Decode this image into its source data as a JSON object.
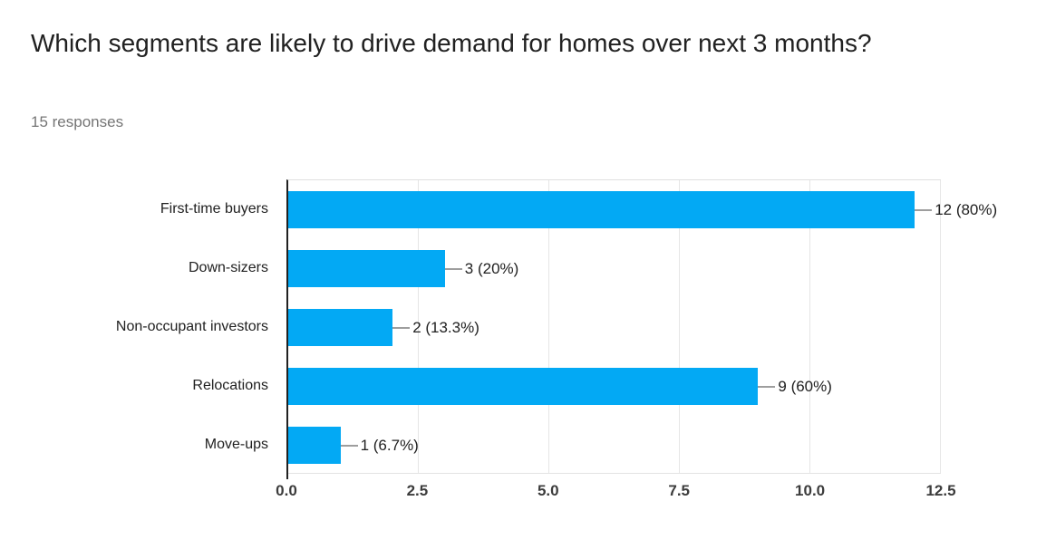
{
  "header": {
    "title": "Which segments are likely to drive demand for homes over next 3 months?",
    "responses_text": "15 responses"
  },
  "chart_data": {
    "type": "bar",
    "orientation": "horizontal",
    "title": "Which segments are likely to drive demand for homes over next 3 months?",
    "subtitle": "15 responses",
    "total_responses": 15,
    "categories": [
      "First-time buyers",
      "Down-sizers",
      "Non-occupant investors",
      "Relocations",
      "Move-ups"
    ],
    "values": [
      12,
      3,
      2,
      9,
      1
    ],
    "percentages": [
      80,
      20,
      13.3,
      60,
      6.7
    ],
    "value_labels": [
      "12 (80%)",
      "3 (20%)",
      "2 (13.3%)",
      "9 (60%)",
      "1 (6.7%)"
    ],
    "xlim": [
      0,
      12.5
    ],
    "xticks": [
      0.0,
      2.5,
      5.0,
      7.5,
      10.0,
      12.5
    ],
    "xtick_labels": [
      "0.0",
      "2.5",
      "5.0",
      "7.5",
      "10.0",
      "12.5"
    ],
    "xlabel": "",
    "ylabel": "",
    "grid": "vertical-only",
    "legend": "none",
    "bar_color": "#03A9F4"
  },
  "colors": {
    "background": "#ffffff",
    "bar": "#03A9F4",
    "title_text": "#212121",
    "subtitle_text": "#757575",
    "axis_line": "#212121",
    "gridline": "#e6e6e6",
    "plot_border": "#e0e0e0",
    "connector": "#9e9e9e",
    "tick_text": "#3c3c3c",
    "category_text": "#212121"
  }
}
